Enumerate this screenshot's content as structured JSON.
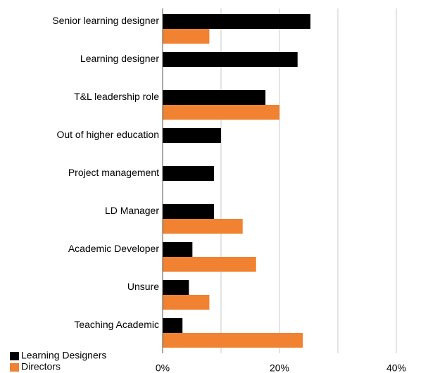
{
  "chart_data": {
    "type": "barh",
    "categories": [
      "Senior learning designer",
      "Learning designer",
      "T&L leadership role",
      "Out of higher education",
      "Project management",
      "LD Manager",
      "Academic Developer",
      "Unsure",
      "Teaching Academic"
    ],
    "series": [
      {
        "name": "Learning Designers",
        "color": "#000000",
        "values": [
          25.3,
          23.1,
          17.6,
          10,
          8.8,
          8.8,
          5.1,
          4.5,
          3.4
        ]
      },
      {
        "name": "Directors",
        "color": "#f08232",
        "values": [
          8,
          null,
          20,
          null,
          null,
          13.7,
          16,
          8,
          24
        ]
      }
    ],
    "xlim": [
      0,
      40
    ],
    "xticks": [
      {
        "value": 0,
        "label": "0%"
      },
      {
        "value": 20,
        "label": "20%"
      },
      {
        "value": 40,
        "label": "40%"
      }
    ],
    "xminor": [
      10,
      30
    ],
    "grid": true,
    "legend": "bottom-left"
  }
}
